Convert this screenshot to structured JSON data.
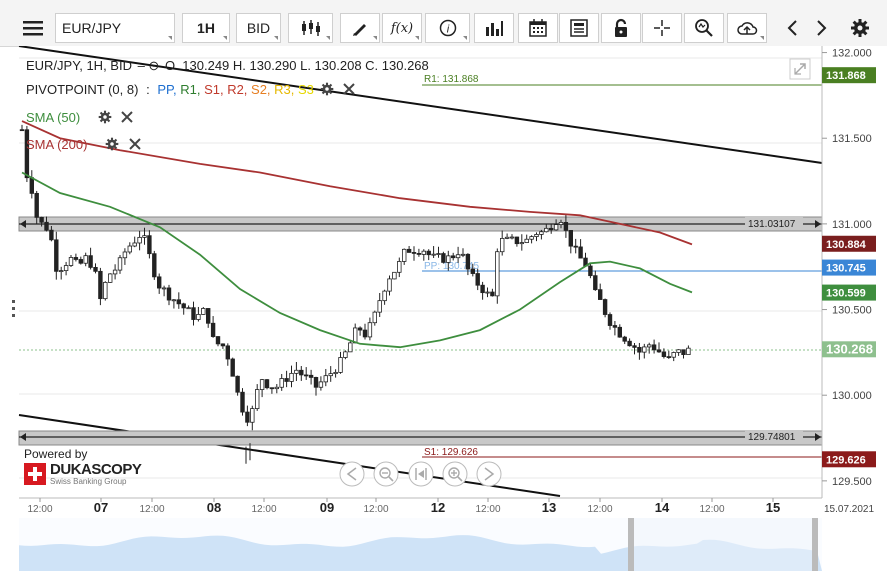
{
  "toolbar": {
    "menu_icon": "hamburger-menu-icon",
    "instrument": "EUR/JPY",
    "timeframe": "1H",
    "price_side": "BID",
    "icons": [
      "candlestick-type-icon",
      "drawing-pen-icon",
      "function-fx-icon",
      "info-icon",
      "volume-bars-icon",
      "calendar-icon",
      "news-icon",
      "lock-icon",
      "crosshair-icon",
      "zoom-icon",
      "cloud-upload-icon",
      "chevron-left-icon",
      "chevron-right-icon",
      "settings-gear-icon"
    ],
    "fx_label": "f(x)"
  },
  "header": {
    "quote_line": "EUR/JPY, 1H, BID",
    "ohlc": "O. 130.249 H. 130.290 L. 130.208 C. 130.268"
  },
  "indicators": {
    "pivot_name": "PIVOTPOINT (0, 8)",
    "pivot_sep": ":",
    "pivot_levels": [
      {
        "label": "PP,",
        "color": "#1e6fd0"
      },
      {
        "label": "R1,",
        "color": "#2e7d2e"
      },
      {
        "label": "S1,",
        "color": "#c0392b"
      },
      {
        "label": "R2,",
        "color": "#c0392b"
      },
      {
        "label": "S2,",
        "color": "#e67e22"
      },
      {
        "label": "R3,",
        "color": "#e6b800"
      },
      {
        "label": "S3",
        "color": "#e6d800"
      }
    ],
    "sma50": "SMA (50)",
    "sma200": "SMA (200)",
    "sma50_color": "#3e8e3e",
    "sma200_color": "#a83232"
  },
  "branding": {
    "powered_by": "Powered by",
    "brand": "DUKASCOPY",
    "tagline": "Swiss Banking Group"
  },
  "levels": {
    "r1_label": "R1: 131.868",
    "s1_label": "S1: 129.626",
    "pp_label": "PP: 130.745",
    "upper_band": "131.03107",
    "lower_band": "129.74801"
  },
  "price_axis": {
    "ticks": [
      "132.000",
      "131.500",
      "131.000",
      "130.500",
      "130.000",
      "129.500"
    ],
    "tags": [
      {
        "value": "131.868",
        "color": "#4a7f22"
      },
      {
        "value": "130.884",
        "color": "#7a1e1e"
      },
      {
        "value": "130.745",
        "color": "#3a86d6"
      },
      {
        "value": "130.599",
        "color": "#3e8e3e"
      },
      {
        "value": "130.268",
        "color": "#8ec08e"
      },
      {
        "value": "129.626",
        "color": "#8b1a1a"
      }
    ]
  },
  "time_axis": {
    "labels": [
      "12:00",
      "07",
      "12:00",
      "08",
      "12:00",
      "09",
      "12:00",
      "12",
      "12:00",
      "13",
      "12:00",
      "14",
      "12:00",
      "15"
    ],
    "last_date": "15.07.2021"
  },
  "nav_icons": [
    "scroll-left-icon",
    "zoom-out-icon",
    "reset-zoom-icon",
    "zoom-in-icon",
    "scroll-right-icon"
  ],
  "chart_data": {
    "type": "candlestick",
    "instrument": "EUR/JPY",
    "timeframe": "1H",
    "ylim": [
      129.4,
      132.05
    ],
    "x_days": [
      "07",
      "08",
      "09",
      "12",
      "13",
      "14",
      "15"
    ],
    "last_close": 130.268,
    "pivot": {
      "PP": 130.745,
      "R1": 131.868,
      "S1": 129.626
    },
    "channel_upper": 131.03107,
    "channel_lower": 129.74801,
    "sma50_last": 130.599,
    "sma200_last": 130.884
  }
}
